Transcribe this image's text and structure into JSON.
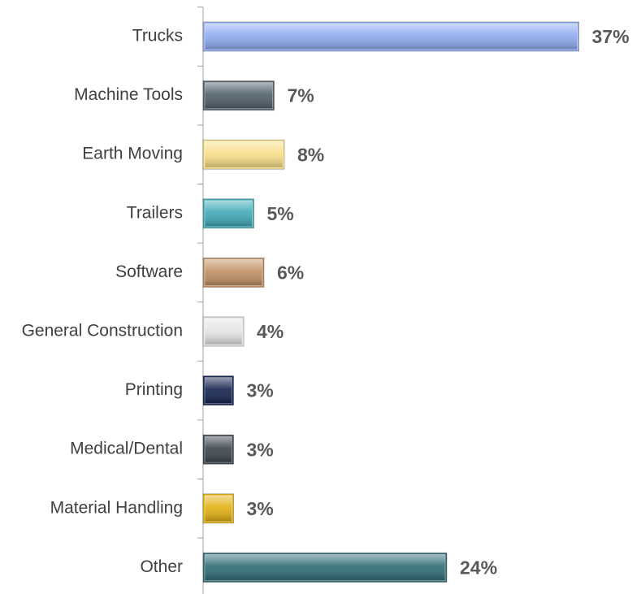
{
  "chart_data": {
    "type": "hbar",
    "categories": [
      "Trucks",
      "Machine Tools",
      "Earth Moving",
      "Trailers",
      "Software",
      "General Construction",
      "Printing",
      "Medical/Dental",
      "Material Handling",
      "Other"
    ],
    "values": [
      37,
      7,
      8,
      5,
      6,
      4,
      3,
      3,
      3,
      24
    ],
    "value_labels": [
      "37%",
      "7%",
      "8%",
      "5%",
      "6%",
      "4%",
      "3%",
      "3%",
      "3%",
      "24%"
    ],
    "colors": [
      "#8eaaf0",
      "#4f5f6a",
      "#f8de86",
      "#3fa8b8",
      "#c08f62",
      "#e4e4e4",
      "#14234f",
      "#3b444c",
      "#e2b012",
      "#2f6b74"
    ],
    "xlim": [
      0,
      40
    ]
  }
}
